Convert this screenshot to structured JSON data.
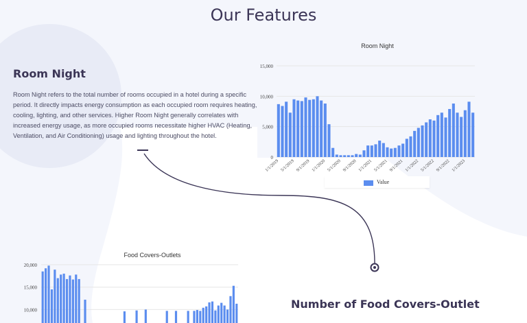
{
  "page": {
    "title": "Our Features"
  },
  "features": [
    {
      "heading": "Room Night",
      "text": "Room Night refers to the total number of rooms occupied in a hotel during a specific period. It directly impacts energy consumption as each occupied room requires heating, cooling, lighting, and other services. Higher Room Night generally correlates with increased energy usage, as more occupied rooms necessitate higher HVAC (Heating, Ventilation, and Air Conditioning) usage and lighting throughout the hotel."
    },
    {
      "heading": "Number of Food Covers-Outlet"
    }
  ],
  "colors": {
    "bar": "#5b8def",
    "heading": "#3b3556",
    "background": "#f4f6fc"
  },
  "icons": {
    "connector_end": "circle-dot-icon"
  },
  "chart_data": [
    {
      "type": "bar",
      "title": "Room Night",
      "ylim": [
        0,
        15000
      ],
      "yticks": [
        "0",
        "5,000",
        "10,000",
        "15,000"
      ],
      "xtick_labels": [
        "1/1/2019",
        "5/1/2019",
        "9/1/2019",
        "1/1/2020",
        "5/1/2020",
        "9/1/2020",
        "1/1/2021",
        "5/1/2021",
        "9/1/2021",
        "1/1/2022",
        "5/1/2022",
        "9/1/2022",
        "1/1/2023"
      ],
      "legend": "Value",
      "grid": true,
      "values": [
        8700,
        8400,
        9100,
        7300,
        9500,
        9300,
        9200,
        9800,
        9400,
        9500,
        10000,
        9300,
        8800,
        5400,
        1500,
        400,
        300,
        300,
        300,
        300,
        500,
        400,
        1100,
        1900,
        1900,
        2100,
        2700,
        2300,
        1600,
        1400,
        1500,
        1900,
        2200,
        3000,
        3400,
        4300,
        4800,
        5200,
        5700,
        6200,
        6000,
        6900,
        7300,
        6500,
        7900,
        8800,
        7300,
        6600,
        7700,
        9100,
        7300
      ]
    },
    {
      "type": "bar",
      "title": "Food Covers-Outlets",
      "ylim": [
        7000,
        20000
      ],
      "yticks": [
        "10,000",
        "15,000",
        "20,000"
      ],
      "grid": true,
      "values": [
        18500,
        19200,
        19800,
        14500,
        18900,
        17000,
        17800,
        18000,
        16800,
        17600,
        16700,
        17800,
        16800,
        null,
        12200,
        null,
        null,
        null,
        null,
        null,
        null,
        null,
        null,
        null,
        null,
        null,
        null,
        9600,
        null,
        null,
        null,
        9800,
        null,
        null,
        10000,
        null,
        null,
        null,
        null,
        null,
        null,
        9700,
        null,
        null,
        9700,
        null,
        null,
        null,
        9700,
        null,
        9700,
        9900,
        9700,
        10400,
        10700,
        11600,
        11800,
        9800,
        10900,
        11500,
        10900,
        10000,
        13000,
        15300,
        11300
      ]
    }
  ]
}
